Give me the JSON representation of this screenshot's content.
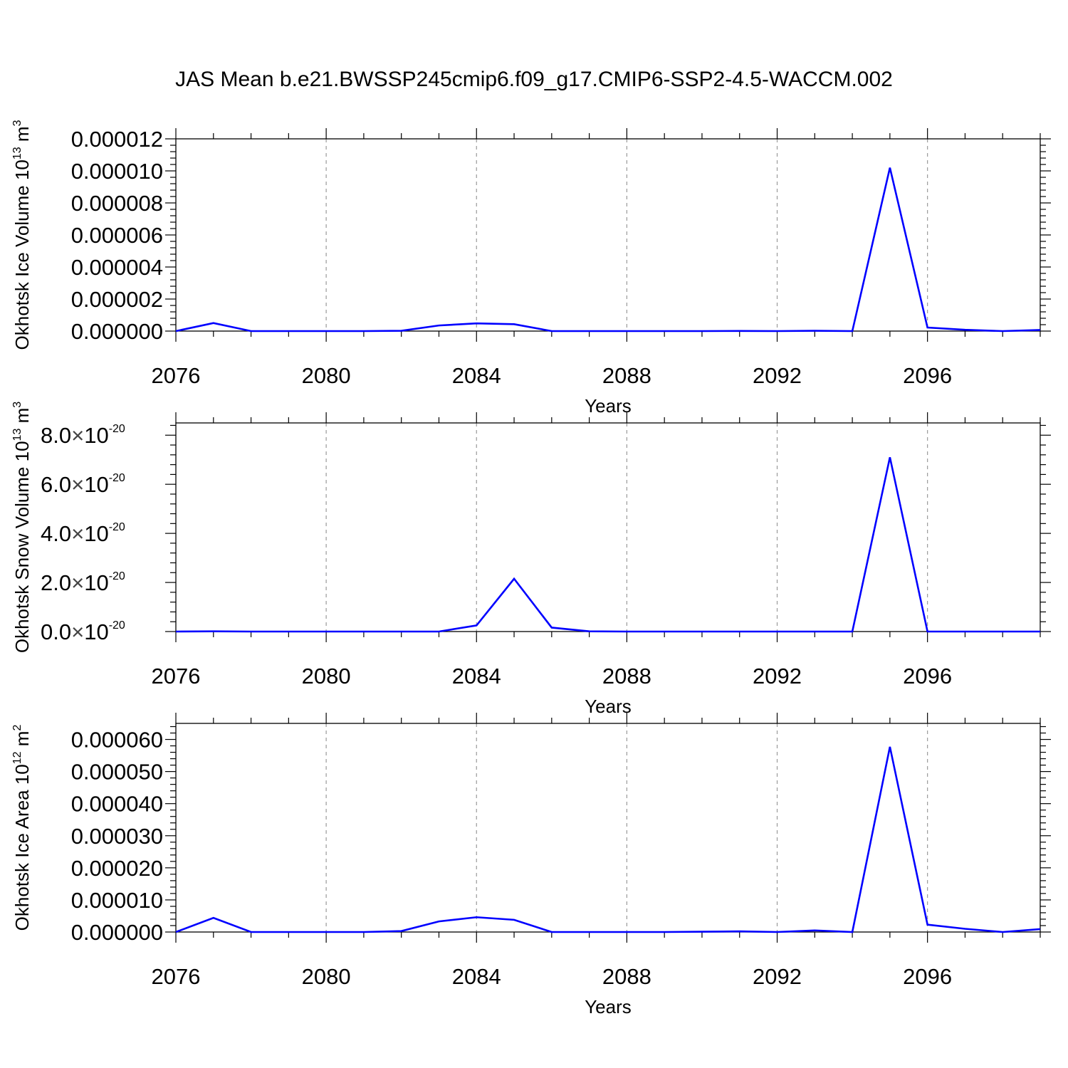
{
  "title": "JAS Mean b.e21.BWSSP245cmip6.f09_g17.CMIP6-SSP2-4.5-WACCM.002",
  "colors": {
    "series": "#0000ff",
    "axis": "#000000",
    "grid": "#9a9a9a"
  },
  "chart_data": [
    {
      "type": "line",
      "ylabel": "Okhotsk Ice Volume 10^13 m^3",
      "ylabel_base": "Okhotsk Ice Volume 10",
      "ylabel_exp1": "13",
      "ylabel_unit": " m",
      "ylabel_exp2": "3",
      "xlabel": "Years",
      "xlim": [
        2076,
        2099
      ],
      "ylim": [
        0,
        1.2e-05
      ],
      "x_ticks": [
        2076,
        2080,
        2084,
        2088,
        2092,
        2096
      ],
      "x_tick_labels": [
        "2076",
        "2080",
        "2084",
        "2088",
        "2092",
        "2096"
      ],
      "y_ticks": [
        0,
        2e-06,
        4e-06,
        6e-06,
        8e-06,
        1e-05,
        1.2e-05
      ],
      "y_tick_labels": [
        "0.000000",
        "0.000002",
        "0.000004",
        "0.000006",
        "0.000008",
        "0.000010",
        "0.000012"
      ],
      "grid": "vertical dashed at major x ticks",
      "x": [
        2076,
        2077,
        2078,
        2079,
        2080,
        2081,
        2082,
        2083,
        2084,
        2085,
        2086,
        2087,
        2088,
        2089,
        2090,
        2091,
        2092,
        2093,
        2094,
        2095,
        2096,
        2097,
        2098,
        2099
      ],
      "values": [
        0.0,
        5e-07,
        0.0,
        0.0,
        0.0,
        0.0,
        2e-08,
        3.5e-07,
        4.8e-07,
        4.3e-07,
        0.0,
        0.0,
        0.0,
        0.0,
        0.0,
        1e-08,
        0.0,
        2e-08,
        0.0,
        1.02e-05,
        2.2e-07,
        8e-08,
        0.0,
        7e-08
      ]
    },
    {
      "type": "line",
      "ylabel": "Okhotsk Snow Volume 10^13 m^3",
      "ylabel_base": "Okhotsk Snow Volume 10",
      "ylabel_exp1": "13",
      "ylabel_unit": " m",
      "ylabel_exp2": "3",
      "xlabel": "Years",
      "xlim": [
        2076,
        2099
      ],
      "ylim": [
        0,
        8.5e-20
      ],
      "x_ticks": [
        2076,
        2080,
        2084,
        2088,
        2092,
        2096
      ],
      "x_tick_labels": [
        "2076",
        "2080",
        "2084",
        "2088",
        "2092",
        "2096"
      ],
      "y_ticks": [
        0,
        2e-20,
        4e-20,
        6e-20,
        8e-20
      ],
      "y_tick_mantissas": [
        "0.0",
        "2.0",
        "4.0",
        "6.0",
        "8.0"
      ],
      "y_tick_times": "×",
      "y_tick_base": "10",
      "y_tick_exp": "-20",
      "grid": "vertical dashed at major x ticks",
      "x": [
        2076,
        2077,
        2078,
        2079,
        2080,
        2081,
        2082,
        2083,
        2084,
        2085,
        2086,
        2087,
        2088,
        2089,
        2090,
        2091,
        2092,
        2093,
        2094,
        2095,
        2096,
        2097,
        2098,
        2099
      ],
      "values": [
        0.0,
        1e-22,
        0.0,
        0.0,
        0.0,
        0.0,
        0.0,
        0.0,
        2.5e-21,
        2.15e-20,
        1.6e-21,
        1e-22,
        0.0,
        0.0,
        0.0,
        0.0,
        0.0,
        0.0,
        0.0,
        7.1e-20,
        0.0,
        0.0,
        0.0,
        0.0
      ]
    },
    {
      "type": "line",
      "ylabel": "Okhotsk Ice Area 10^12 m^2",
      "ylabel_base": "Okhotsk Ice Area 10",
      "ylabel_exp1": "12",
      "ylabel_unit": " m",
      "ylabel_exp2": "2",
      "xlabel": "Years",
      "xlim": [
        2076,
        2099
      ],
      "ylim": [
        0,
        6.5e-05
      ],
      "x_ticks": [
        2076,
        2080,
        2084,
        2088,
        2092,
        2096
      ],
      "x_tick_labels": [
        "2076",
        "2080",
        "2084",
        "2088",
        "2092",
        "2096"
      ],
      "y_ticks": [
        0,
        1e-05,
        2e-05,
        3e-05,
        4e-05,
        5e-05,
        6e-05
      ],
      "y_tick_labels": [
        "0.000000",
        "0.000010",
        "0.000020",
        "0.000030",
        "0.000040",
        "0.000050",
        "0.000060"
      ],
      "grid": "vertical dashed at major x ticks",
      "x": [
        2076,
        2077,
        2078,
        2079,
        2080,
        2081,
        2082,
        2083,
        2084,
        2085,
        2086,
        2087,
        2088,
        2089,
        2090,
        2091,
        2092,
        2093,
        2094,
        2095,
        2096,
        2097,
        2098,
        2099
      ],
      "values": [
        0.0,
        4.4e-06,
        0.0,
        0.0,
        0.0,
        0.0,
        3e-07,
        3.3e-06,
        4.6e-06,
        3.8e-06,
        0.0,
        0.0,
        0.0,
        0.0,
        1e-07,
        2e-07,
        0.0,
        5e-07,
        0.0,
        5.77e-05,
        2.3e-06,
        1e-06,
        0.0,
        9e-07
      ]
    }
  ]
}
